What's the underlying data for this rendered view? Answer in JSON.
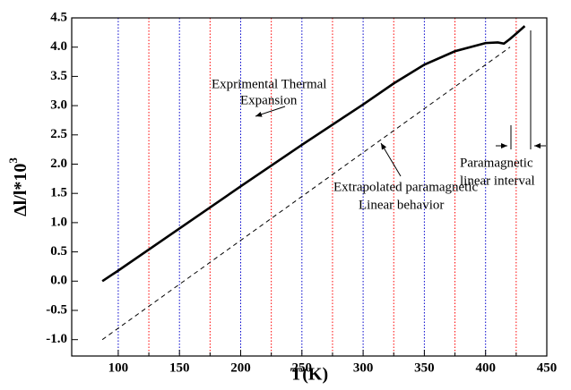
{
  "chart_data": {
    "type": "line",
    "xlabel": "T(K)",
    "ylabel": "Δl/l*10",
    "ylabel_sup": "3",
    "xlim": [
      62,
      450
    ],
    "ylim": [
      -1.28,
      4.5
    ],
    "xticks": [
      100,
      150,
      200,
      250,
      300,
      350,
      400,
      450
    ],
    "minor_xticks": [
      125,
      175,
      225,
      275,
      325,
      375,
      425
    ],
    "yticks": [
      {
        "value": -1,
        "label": "-1.0"
      },
      -0.5,
      {
        "value": 0,
        "label": "0.0"
      },
      0.5,
      {
        "value": 1,
        "label": "1.0"
      },
      1.5,
      {
        "value": 2,
        "label": "2.0"
      },
      2.5,
      {
        "value": 3,
        "label": "3.0"
      },
      3.5,
      {
        "value": 4,
        "label": "4.0"
      },
      4.5
    ],
    "grid": true,
    "grid_color": "#0000cc",
    "minor_grid_color": "#ff0000",
    "series": [
      {
        "name": "Exprimental Thermal Expansion",
        "color": "#000000",
        "style": "solid",
        "x": [
          87,
          100,
          150,
          200,
          250,
          300,
          325,
          350,
          375,
          400,
          410,
          415,
          420,
          425,
          432
        ],
        "values": [
          0,
          0.18,
          0.9,
          1.62,
          2.33,
          3.02,
          3.38,
          3.7,
          3.93,
          4.07,
          4.08,
          4.06,
          4.14,
          4.23,
          4.36
        ]
      },
      {
        "name": "Extrapolated paramagnetic Linear behavior",
        "color": "#000000",
        "style": "dashed",
        "x": [
          87,
          420
        ],
        "values": [
          -1.0,
          4.0
        ]
      }
    ],
    "annotations": [
      {
        "lines": [
          "Exprimental Thermal",
          "Expansion"
        ]
      },
      {
        "lines": [
          "Extrapolated paramagnetic",
          "Linear behavior"
        ]
      },
      {
        "lines": [
          "Paramagnetic",
          "linear interval"
        ]
      }
    ]
  }
}
